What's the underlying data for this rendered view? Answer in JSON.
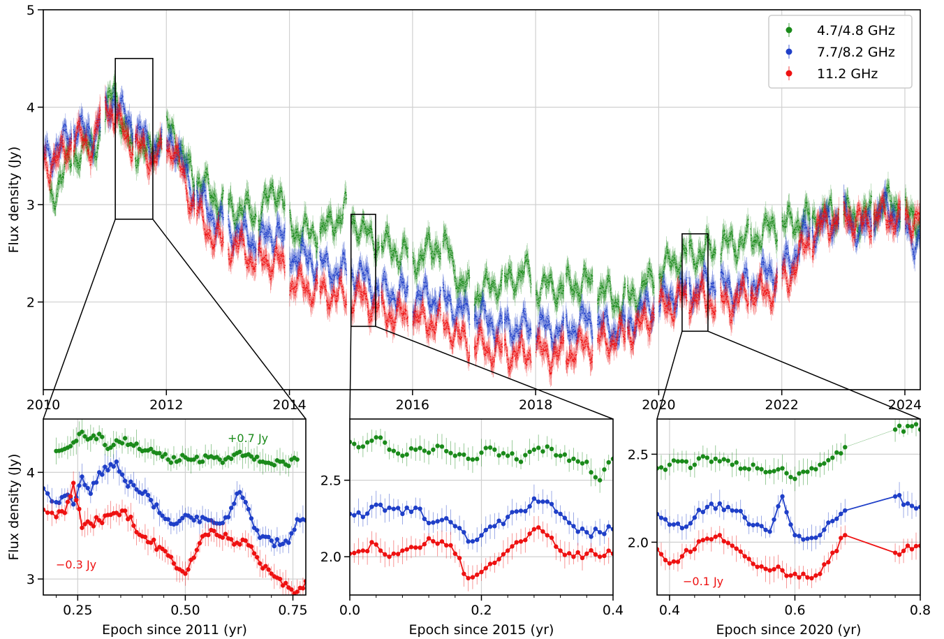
{
  "colors": {
    "g": "#1a8a1a",
    "b": "#1f3fc8",
    "r": "#ee1111",
    "grid": "#d0d0d0"
  },
  "chart_data": [
    {
      "type": "scatter",
      "id": "main",
      "xlabel": "",
      "ylabel": "Flux density (Jy)",
      "xlim": [
        2010,
        2024.25
      ],
      "ylim": [
        1.1,
        5.0
      ],
      "xticks": [
        2010,
        2012,
        2014,
        2016,
        2018,
        2020,
        2022,
        2024
      ],
      "yticks": [
        2,
        3,
        4,
        5
      ],
      "grid": true,
      "legend": {
        "position": "top-right",
        "entries": [
          {
            "label": "4.7/4.8 GHz",
            "color": "g"
          },
          {
            "label": "7.7/8.2 GHz",
            "color": "b"
          },
          {
            "label": "11.2 GHz",
            "color": "r"
          }
        ]
      },
      "series": [
        {
          "name": "4.7/4.8 GHz",
          "color": "g",
          "x": [
            2010.0,
            2010.3,
            2010.5,
            2010.8,
            2011.0,
            2011.15,
            2011.3,
            2011.5,
            2011.7,
            2011.9,
            2012.1,
            2012.3,
            2012.6,
            2012.9,
            2013.2,
            2013.5,
            2013.8,
            2014.0,
            2014.3,
            2014.6,
            2014.9,
            2015.1,
            2015.3,
            2015.5,
            2015.8,
            2016.1,
            2016.4,
            2016.6,
            2016.8,
            2017.1,
            2017.4,
            2017.6,
            2017.8,
            2018.0,
            2018.4,
            2018.8,
            2019.1,
            2019.4,
            2019.7,
            2020.0,
            2020.3,
            2020.6,
            2020.9,
            2021.2,
            2021.5,
            2021.8,
            2022.1,
            2022.4,
            2022.7,
            2023.0,
            2023.3,
            2023.6,
            2023.9,
            2024.1
          ],
          "y": [
            2.9,
            3.3,
            3.5,
            3.6,
            3.8,
            4.3,
            3.7,
            3.6,
            3.5,
            3.7,
            3.8,
            3.4,
            3.2,
            3.0,
            2.95,
            2.9,
            3.2,
            2.8,
            2.7,
            2.75,
            2.95,
            2.8,
            2.65,
            2.6,
            2.5,
            2.45,
            2.6,
            2.5,
            2.15,
            2.1,
            2.2,
            2.2,
            2.35,
            2.15,
            2.15,
            2.2,
            2.1,
            2.0,
            2.1,
            2.3,
            2.45,
            2.5,
            2.55,
            2.6,
            2.65,
            2.75,
            2.8,
            2.85,
            2.9,
            2.9,
            2.85,
            3.0,
            3.0,
            2.85
          ]
        },
        {
          "name": "7.7/8.2 GHz",
          "color": "b",
          "x": [
            2010.0,
            2010.3,
            2010.5,
            2010.8,
            2011.0,
            2011.15,
            2011.3,
            2011.5,
            2011.7,
            2011.9,
            2012.1,
            2012.3,
            2012.6,
            2012.9,
            2013.2,
            2013.5,
            2013.8,
            2014.0,
            2014.3,
            2014.6,
            2014.9,
            2015.1,
            2015.3,
            2015.5,
            2015.8,
            2016.1,
            2016.4,
            2016.6,
            2016.8,
            2017.1,
            2017.4,
            2017.6,
            2017.8,
            2018.0,
            2018.4,
            2018.8,
            2019.1,
            2019.4,
            2019.7,
            2020.0,
            2020.3,
            2020.6,
            2020.9,
            2021.2,
            2021.5,
            2021.8,
            2022.1,
            2022.4,
            2022.7,
            2023.0,
            2023.3,
            2023.6,
            2023.9,
            2024.1
          ],
          "y": [
            3.5,
            3.6,
            3.8,
            3.7,
            3.9,
            4.1,
            3.9,
            3.8,
            3.6,
            3.6,
            3.7,
            3.3,
            3.0,
            2.8,
            2.7,
            2.6,
            2.75,
            2.5,
            2.45,
            2.35,
            2.3,
            2.3,
            2.2,
            2.1,
            2.1,
            2.05,
            2.05,
            2.0,
            1.9,
            1.85,
            1.75,
            1.75,
            1.72,
            1.75,
            1.7,
            1.8,
            1.75,
            1.7,
            1.9,
            2.0,
            2.1,
            2.15,
            2.2,
            2.1,
            2.2,
            2.3,
            2.4,
            2.7,
            2.8,
            2.9,
            2.7,
            2.95,
            2.9,
            2.65
          ]
        },
        {
          "name": "11.2 GHz",
          "color": "r",
          "x": [
            2010.0,
            2010.3,
            2010.5,
            2010.8,
            2011.0,
            2011.15,
            2011.3,
            2011.5,
            2011.7,
            2011.9,
            2012.1,
            2012.3,
            2012.6,
            2012.9,
            2013.2,
            2013.5,
            2013.8,
            2014.0,
            2014.3,
            2014.6,
            2014.9,
            2015.1,
            2015.3,
            2015.5,
            2015.8,
            2016.1,
            2016.4,
            2016.6,
            2016.8,
            2017.1,
            2017.4,
            2017.6,
            2017.8,
            2018.0,
            2018.4,
            2018.8,
            2019.1,
            2019.4,
            2019.7,
            2020.0,
            2020.3,
            2020.6,
            2020.9,
            2021.2,
            2021.5,
            2021.8,
            2022.1,
            2022.4,
            2022.7,
            2023.0,
            2023.3,
            2023.6,
            2023.9,
            2024.1
          ],
          "y": [
            3.4,
            3.5,
            3.7,
            3.6,
            4.1,
            3.9,
            3.75,
            3.6,
            3.5,
            3.5,
            3.6,
            3.2,
            2.8,
            2.6,
            2.55,
            2.4,
            2.45,
            2.2,
            2.15,
            2.1,
            2.05,
            2.05,
            2.0,
            1.9,
            1.85,
            1.8,
            1.8,
            1.75,
            1.6,
            1.55,
            1.5,
            1.48,
            1.45,
            1.5,
            1.45,
            1.55,
            1.6,
            1.65,
            1.75,
            1.95,
            2.0,
            2.05,
            2.0,
            2.0,
            2.1,
            2.1,
            2.25,
            2.6,
            2.8,
            2.9,
            2.8,
            2.9,
            2.85,
            2.85
          ]
        }
      ]
    },
    {
      "type": "line",
      "id": "inset1",
      "xlabel": "Epoch since 2011 (yr)",
      "ylabel": "Flux density (Jy)",
      "xlim": [
        0.17,
        0.78
      ],
      "ylim": [
        2.85,
        4.5
      ],
      "xticks": [
        0.25,
        0.5,
        0.75
      ],
      "xtick_labels": [
        "0.25",
        "0.50",
        "0.75"
      ],
      "yticks": [
        3,
        4
      ],
      "grid": true,
      "annotations": [
        {
          "text": "+0.7 Jy",
          "color": "g"
        },
        {
          "text": "−0.3 Jy",
          "color": "r"
        }
      ],
      "series": [
        {
          "name": "",
          "color": "g",
          "connect": false,
          "x": [
            0.2,
            0.22,
            0.24,
            0.26,
            0.28,
            0.3,
            0.32,
            0.34,
            0.36,
            0.38,
            0.4,
            0.42,
            0.44,
            0.46,
            0.48,
            0.5,
            0.52,
            0.54,
            0.56,
            0.58,
            0.6,
            0.62,
            0.64,
            0.66,
            0.68,
            0.7,
            0.72,
            0.74,
            0.76
          ],
          "y": [
            4.2,
            4.22,
            4.28,
            4.38,
            4.32,
            4.36,
            4.22,
            4.3,
            4.32,
            4.25,
            4.2,
            4.22,
            4.18,
            4.12,
            4.1,
            4.14,
            4.12,
            4.1,
            4.15,
            4.12,
            4.14,
            4.18,
            4.16,
            4.12,
            4.1,
            4.08,
            4.1,
            4.06,
            4.12
          ]
        },
        {
          "name": "",
          "color": "b",
          "connect": true,
          "x": [
            0.17,
            0.2,
            0.22,
            0.24,
            0.26,
            0.28,
            0.3,
            0.32,
            0.34,
            0.36,
            0.38,
            0.4,
            0.42,
            0.44,
            0.46,
            0.48,
            0.5,
            0.52,
            0.54,
            0.56,
            0.58,
            0.6,
            0.62,
            0.64,
            0.66,
            0.68,
            0.7,
            0.72,
            0.74,
            0.76,
            0.78
          ],
          "y": [
            3.85,
            3.72,
            3.78,
            3.7,
            3.96,
            3.8,
            4.0,
            4.02,
            4.1,
            3.92,
            3.88,
            3.8,
            3.74,
            3.62,
            3.56,
            3.52,
            3.6,
            3.55,
            3.58,
            3.55,
            3.52,
            3.58,
            3.8,
            3.72,
            3.48,
            3.4,
            3.36,
            3.32,
            3.34,
            3.56,
            3.55
          ]
        },
        {
          "name": "",
          "color": "r",
          "connect": true,
          "x": [
            0.17,
            0.2,
            0.22,
            0.24,
            0.26,
            0.28,
            0.3,
            0.32,
            0.34,
            0.36,
            0.38,
            0.4,
            0.42,
            0.44,
            0.46,
            0.48,
            0.5,
            0.52,
            0.54,
            0.56,
            0.58,
            0.6,
            0.62,
            0.64,
            0.66,
            0.68,
            0.7,
            0.72,
            0.74,
            0.76,
            0.78
          ],
          "y": [
            3.65,
            3.58,
            3.62,
            3.9,
            3.48,
            3.52,
            3.55,
            3.6,
            3.62,
            3.64,
            3.5,
            3.4,
            3.34,
            3.3,
            3.22,
            3.1,
            3.05,
            3.2,
            3.4,
            3.46,
            3.4,
            3.38,
            3.34,
            3.36,
            3.24,
            3.1,
            3.05,
            3.0,
            2.92,
            2.88,
            2.98
          ]
        }
      ]
    },
    {
      "type": "line",
      "id": "inset2",
      "xlabel": "Epoch since 2015 (yr)",
      "ylabel": "",
      "xlim": [
        0.0,
        0.4
      ],
      "ylim": [
        1.75,
        2.9
      ],
      "xticks": [
        0.0,
        0.2,
        0.4
      ],
      "xtick_labels": [
        "0.0",
        "0.2",
        "0.4"
      ],
      "yticks": [
        2.0,
        2.5
      ],
      "ytick_labels": [
        "2.0",
        "2.5"
      ],
      "grid": true,
      "series": [
        {
          "name": "",
          "color": "g",
          "connect": false,
          "x": [
            0.0,
            0.02,
            0.04,
            0.06,
            0.08,
            0.1,
            0.12,
            0.14,
            0.16,
            0.18,
            0.2,
            0.22,
            0.24,
            0.26,
            0.28,
            0.3,
            0.32,
            0.34,
            0.36,
            0.38,
            0.4
          ],
          "y": [
            2.75,
            2.72,
            2.78,
            2.7,
            2.66,
            2.7,
            2.68,
            2.72,
            2.66,
            2.64,
            2.68,
            2.7,
            2.66,
            2.62,
            2.7,
            2.72,
            2.66,
            2.64,
            2.62,
            2.5,
            2.64
          ]
        },
        {
          "name": "",
          "color": "b",
          "connect": true,
          "x": [
            0.0,
            0.02,
            0.04,
            0.06,
            0.08,
            0.1,
            0.12,
            0.14,
            0.16,
            0.18,
            0.2,
            0.22,
            0.24,
            0.26,
            0.28,
            0.3,
            0.32,
            0.34,
            0.36,
            0.38,
            0.4
          ],
          "y": [
            2.28,
            2.26,
            2.34,
            2.32,
            2.28,
            2.32,
            2.22,
            2.24,
            2.2,
            2.1,
            2.14,
            2.2,
            2.26,
            2.3,
            2.38,
            2.36,
            2.28,
            2.2,
            2.16,
            2.16,
            2.18
          ]
        },
        {
          "name": "",
          "color": "r",
          "connect": true,
          "x": [
            0.0,
            0.02,
            0.04,
            0.06,
            0.08,
            0.1,
            0.12,
            0.14,
            0.16,
            0.18,
            0.2,
            0.22,
            0.24,
            0.26,
            0.28,
            0.3,
            0.32,
            0.34,
            0.36,
            0.38,
            0.4
          ],
          "y": [
            2.02,
            2.04,
            2.08,
            2.0,
            2.04,
            2.06,
            2.12,
            2.1,
            2.02,
            1.86,
            1.9,
            1.96,
            2.04,
            2.1,
            2.18,
            2.14,
            2.04,
            2.0,
            2.02,
            2.0,
            2.02
          ]
        }
      ]
    },
    {
      "type": "line",
      "id": "inset3",
      "xlabel": "Epoch since 2020 (yr)",
      "ylabel": "",
      "xlim": [
        0.38,
        0.8
      ],
      "ylim": [
        1.7,
        2.7
      ],
      "xticks": [
        0.4,
        0.6,
        0.8
      ],
      "xtick_labels": [
        "0.4",
        "0.6",
        "0.8"
      ],
      "yticks": [
        2.0,
        2.5
      ],
      "ytick_labels": [
        "2.0",
        "2.5"
      ],
      "grid": true,
      "annotations": [
        {
          "text": "−0.1 Jy",
          "color": "r"
        }
      ],
      "series": [
        {
          "name": "",
          "color": "g",
          "connect": false,
          "x": [
            0.38,
            0.4,
            0.42,
            0.44,
            0.46,
            0.48,
            0.5,
            0.52,
            0.54,
            0.56,
            0.58,
            0.6,
            0.62,
            0.64,
            0.66,
            0.68,
            0.76,
            0.78,
            0.8
          ],
          "y": [
            2.42,
            2.44,
            2.46,
            2.44,
            2.48,
            2.46,
            2.44,
            2.42,
            2.42,
            2.4,
            2.42,
            2.36,
            2.4,
            2.44,
            2.48,
            2.54,
            2.64,
            2.66,
            2.64
          ]
        },
        {
          "name": "",
          "color": "b",
          "connect": true,
          "x": [
            0.38,
            0.4,
            0.42,
            0.44,
            0.46,
            0.48,
            0.5,
            0.52,
            0.54,
            0.56,
            0.58,
            0.6,
            0.62,
            0.64,
            0.66,
            0.68,
            0.76,
            0.78,
            0.8
          ],
          "y": [
            2.16,
            2.1,
            2.08,
            2.14,
            2.2,
            2.22,
            2.18,
            2.14,
            2.1,
            2.06,
            2.26,
            2.04,
            2.02,
            2.04,
            2.12,
            2.18,
            2.26,
            2.22,
            2.2
          ]
        },
        {
          "name": "",
          "color": "r",
          "connect": true,
          "x": [
            0.38,
            0.4,
            0.42,
            0.44,
            0.46,
            0.48,
            0.5,
            0.52,
            0.54,
            0.56,
            0.58,
            0.6,
            0.62,
            0.64,
            0.66,
            0.68,
            0.76,
            0.78,
            0.8
          ],
          "y": [
            1.96,
            1.88,
            1.92,
            1.96,
            2.02,
            2.04,
            1.98,
            1.92,
            1.86,
            1.84,
            1.84,
            1.82,
            1.8,
            1.82,
            1.94,
            2.04,
            1.94,
            1.98,
            1.98
          ]
        }
      ]
    }
  ]
}
